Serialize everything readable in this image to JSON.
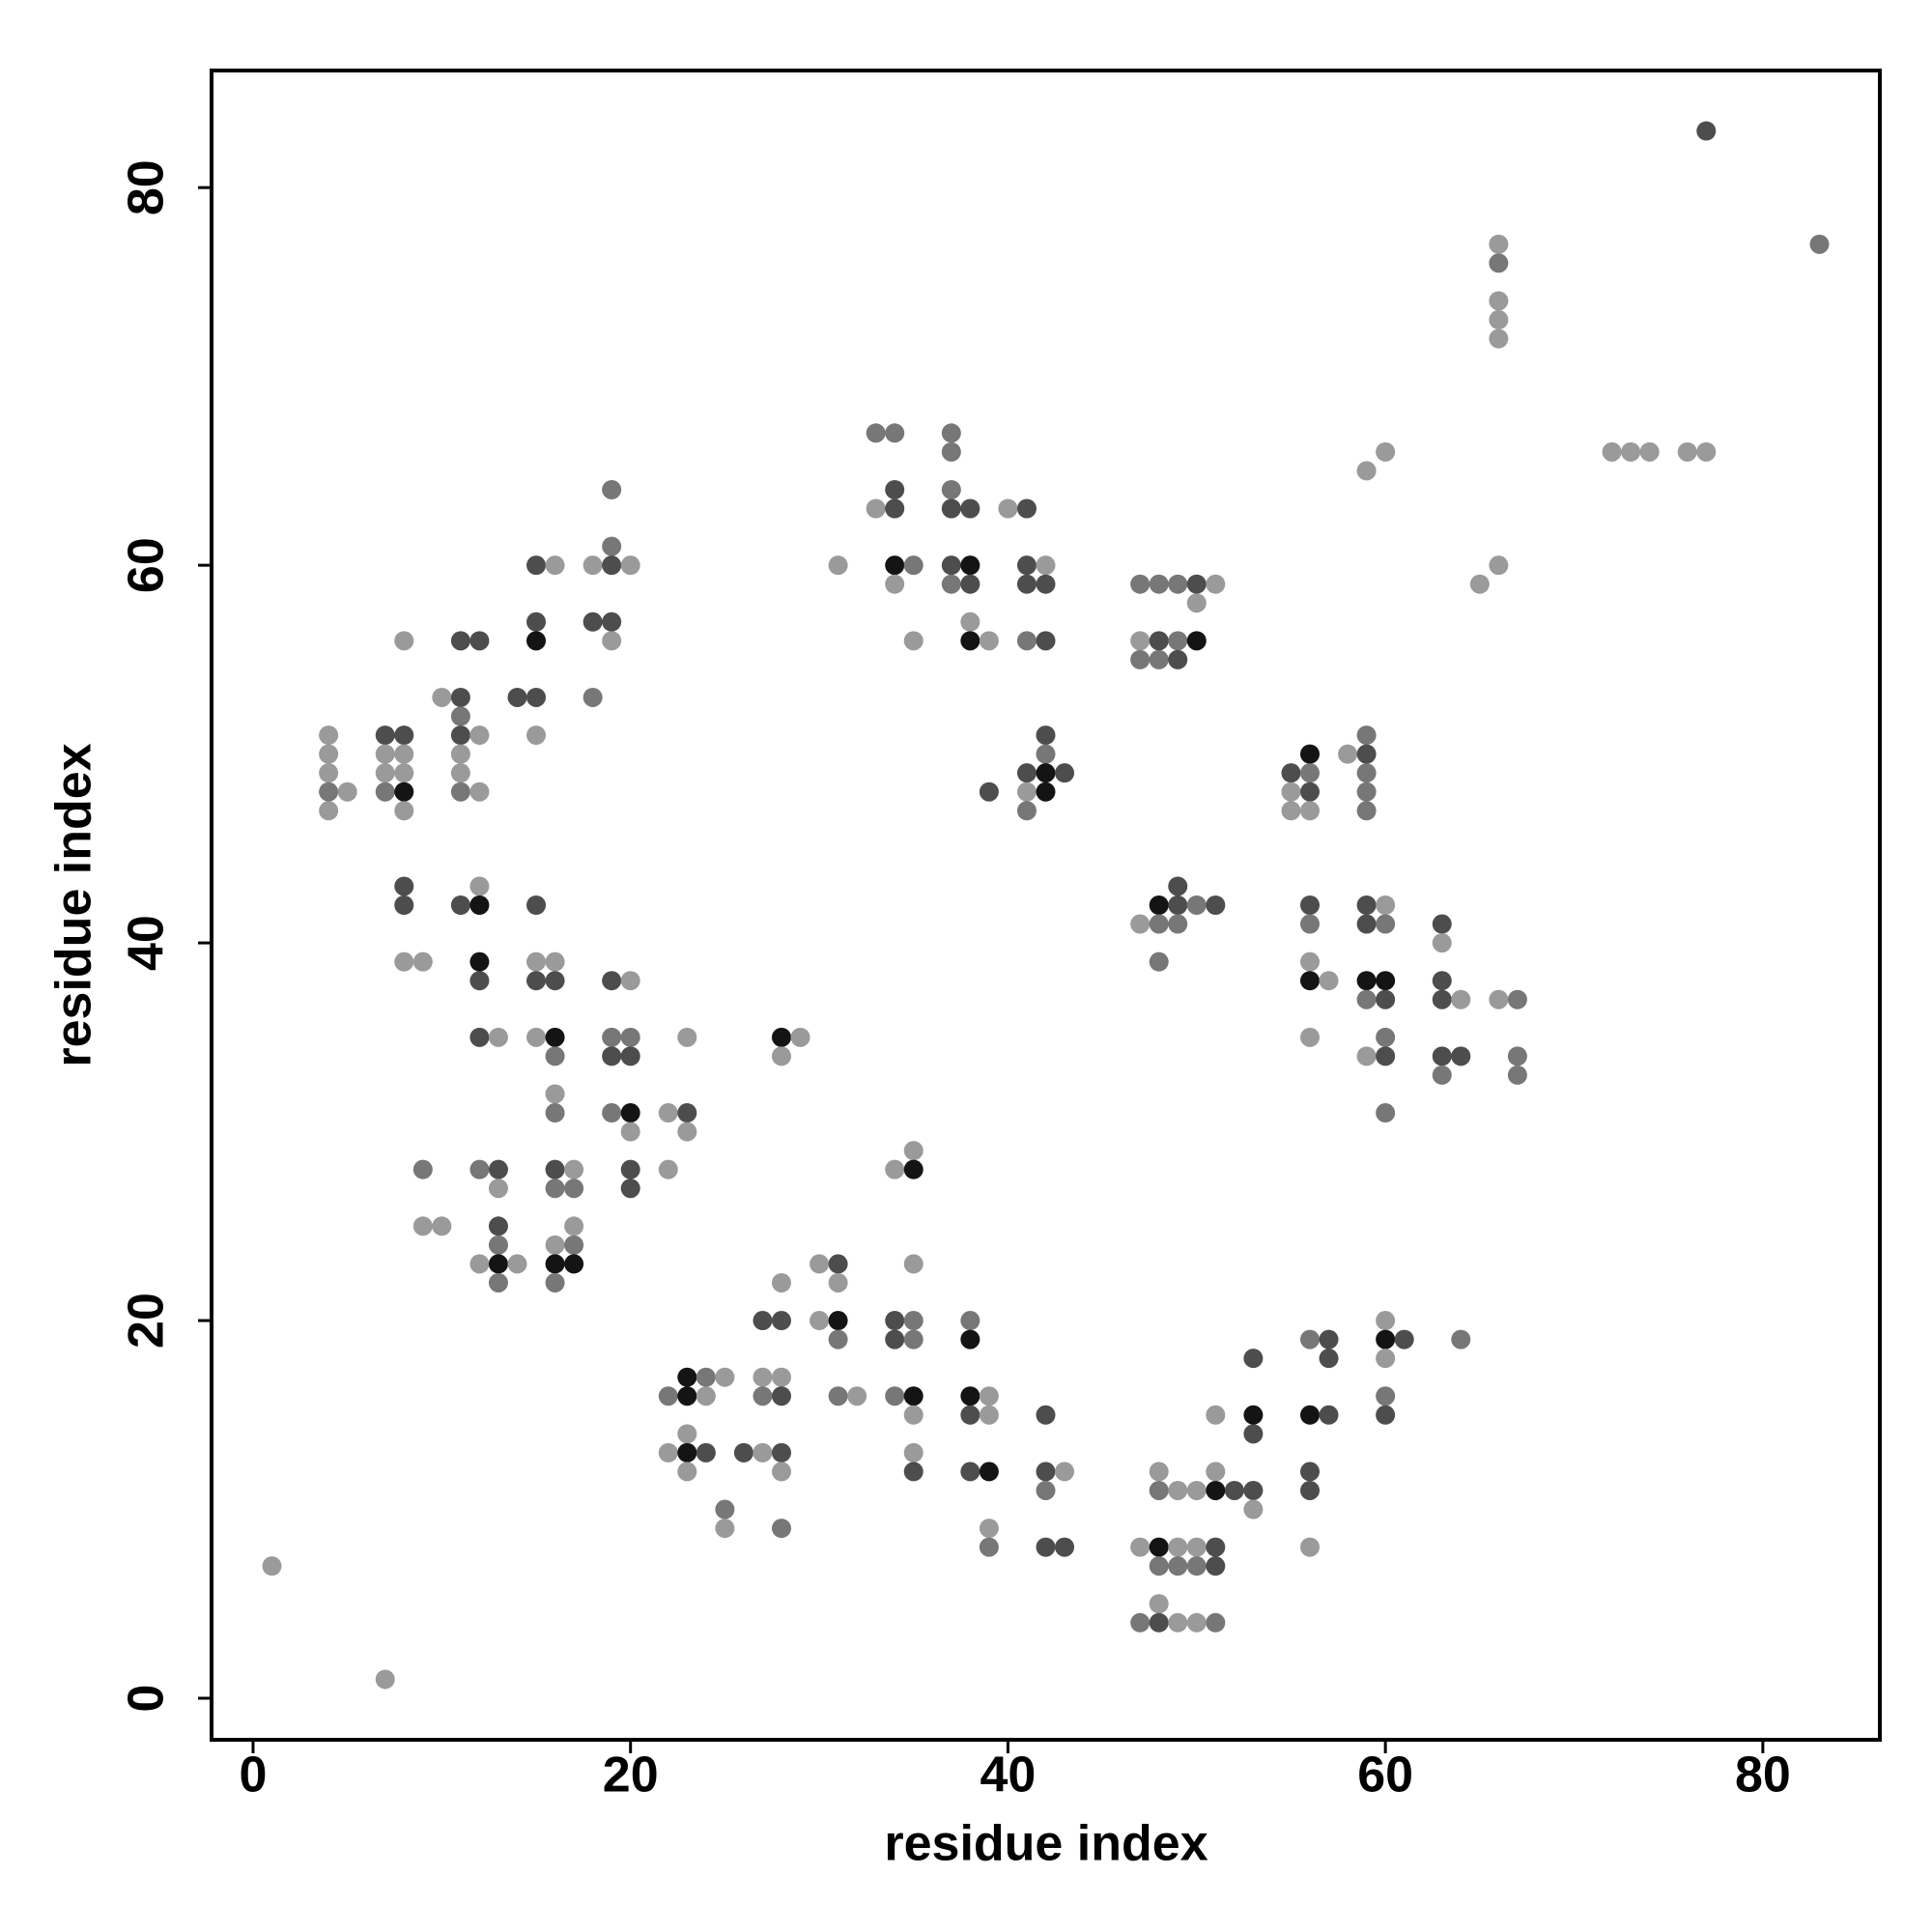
{
  "chart_data": {
    "type": "scatter",
    "xlabel": "residue index",
    "ylabel": "residue index",
    "xlim": [
      -2.2,
      86.2
    ],
    "ylim": [
      -2.2,
      86.2
    ],
    "xticks": [
      0,
      20,
      40,
      60,
      80
    ],
    "yticks": [
      0,
      20,
      40,
      60,
      80
    ],
    "x": [
      1,
      4,
      4,
      4,
      4,
      4,
      5,
      7,
      7,
      7,
      7,
      7,
      8,
      8,
      8,
      8,
      8,
      8,
      8,
      8,
      8,
      9,
      9,
      9,
      10,
      10,
      11,
      11,
      11,
      11,
      11,
      11,
      11,
      11,
      12,
      12,
      12,
      12,
      12,
      12,
      12,
      12,
      12,
      12,
      13,
      13,
      13,
      13,
      13,
      13,
      13,
      14,
      14,
      15,
      15,
      15,
      15,
      15,
      15,
      15,
      15,
      15,
      16,
      16,
      16,
      16,
      16,
      16,
      16,
      16,
      16,
      16,
      16,
      16,
      17,
      17,
      17,
      17,
      17,
      18,
      18,
      18,
      19,
      19,
      19,
      19,
      19,
      19,
      19,
      19,
      19,
      20,
      20,
      20,
      20,
      20,
      20,
      20,
      20,
      22,
      22,
      22,
      22,
      23,
      23,
      23,
      23,
      23,
      23,
      23,
      23,
      24,
      24,
      24,
      25,
      25,
      25,
      26,
      27,
      27,
      27,
      27,
      28,
      28,
      28,
      28,
      28,
      28,
      28,
      28,
      28,
      29,
      30,
      30,
      31,
      31,
      31,
      31,
      31,
      31,
      32,
      33,
      33,
      34,
      34,
      34,
      34,
      34,
      34,
      34,
      34,
      34,
      35,
      35,
      35,
      35,
      35,
      35,
      35,
      35,
      35,
      35,
      35,
      37,
      37,
      37,
      37,
      37,
      37,
      38,
      38,
      38,
      38,
      38,
      38,
      38,
      38,
      38,
      38,
      39,
      39,
      39,
      39,
      39,
      39,
      39,
      40,
      41,
      41,
      41,
      41,
      41,
      41,
      41,
      42,
      42,
      42,
      42,
      42,
      42,
      42,
      42,
      42,
      42,
      42,
      43,
      43,
      43,
      47,
      47,
      47,
      47,
      47,
      47,
      48,
      48,
      48,
      48,
      48,
      48,
      48,
      48,
      48,
      48,
      48,
      48,
      49,
      49,
      49,
      49,
      49,
      49,
      49,
      49,
      49,
      49,
      50,
      50,
      50,
      50,
      50,
      50,
      50,
      50,
      51,
      51,
      51,
      51,
      51,
      51,
      51,
      51,
      52,
      53,
      53,
      53,
      53,
      53,
      55,
      55,
      55,
      56,
      56,
      56,
      56,
      56,
      56,
      56,
      56,
      56,
      56,
      56,
      56,
      56,
      56,
      57,
      57,
      57,
      57,
      58,
      59,
      59,
      59,
      59,
      59,
      59,
      59,
      59,
      59,
      59,
      59,
      60,
      60,
      60,
      60,
      60,
      60,
      60,
      60,
      60,
      60,
      60,
      60,
      60,
      61,
      63,
      63,
      63,
      63,
      63,
      63,
      64,
      64,
      64,
      65,
      66,
      66,
      66,
      66,
      66,
      66,
      66,
      67,
      67,
      67,
      72,
      73,
      74,
      76,
      77,
      77,
      83
    ],
    "values": [
      7,
      51,
      50,
      49,
      48,
      47,
      48,
      51,
      50,
      49,
      48,
      1,
      56,
      51,
      50,
      49,
      48,
      47,
      43,
      42,
      39,
      39,
      28,
      25,
      53,
      25,
      56,
      53,
      52,
      51,
      50,
      49,
      48,
      42,
      56,
      51,
      48,
      43,
      42,
      39,
      38,
      35,
      28,
      23,
      35,
      28,
      27,
      25,
      24,
      23,
      22,
      53,
      23,
      60,
      57,
      56,
      53,
      51,
      42,
      39,
      38,
      35,
      60,
      39,
      38,
      35,
      34,
      32,
      31,
      28,
      27,
      24,
      23,
      22,
      28,
      27,
      25,
      24,
      23,
      60,
      57,
      53,
      64,
      61,
      60,
      57,
      56,
      38,
      35,
      34,
      31,
      60,
      38,
      35,
      34,
      31,
      30,
      28,
      27,
      31,
      28,
      16,
      13,
      35,
      31,
      30,
      17,
      16,
      14,
      13,
      12,
      17,
      16,
      13,
      17,
      10,
      9,
      13,
      20,
      17,
      16,
      13,
      35,
      34,
      22,
      20,
      17,
      16,
      13,
      12,
      9,
      35,
      23,
      20,
      60,
      23,
      22,
      20,
      19,
      16,
      16,
      67,
      63,
      67,
      64,
      63,
      60,
      59,
      28,
      20,
      19,
      16,
      60,
      56,
      29,
      28,
      23,
      20,
      19,
      16,
      15,
      13,
      12,
      67,
      66,
      64,
      63,
      60,
      59,
      63,
      60,
      59,
      57,
      56,
      20,
      19,
      16,
      15,
      12,
      56,
      48,
      16,
      15,
      12,
      9,
      8,
      63,
      63,
      60,
      59,
      56,
      49,
      48,
      47,
      60,
      59,
      56,
      51,
      50,
      49,
      48,
      15,
      12,
      11,
      8,
      49,
      12,
      8,
      59,
      56,
      55,
      41,
      8,
      4,
      59,
      56,
      55,
      42,
      41,
      39,
      12,
      11,
      8,
      7,
      5,
      4,
      59,
      56,
      55,
      43,
      42,
      41,
      11,
      8,
      7,
      4,
      59,
      58,
      56,
      42,
      11,
      8,
      7,
      4,
      59,
      42,
      15,
      12,
      11,
      8,
      7,
      4,
      11,
      18,
      15,
      14,
      11,
      10,
      49,
      48,
      47,
      50,
      49,
      48,
      47,
      42,
      41,
      39,
      38,
      35,
      19,
      15,
      12,
      11,
      8,
      38,
      19,
      18,
      15,
      50,
      65,
      51,
      50,
      49,
      48,
      47,
      42,
      41,
      38,
      37,
      34,
      66,
      42,
      41,
      38,
      37,
      35,
      34,
      31,
      20,
      19,
      18,
      16,
      15,
      19,
      41,
      40,
      38,
      37,
      34,
      33,
      37,
      34,
      19,
      59,
      77,
      76,
      74,
      73,
      72,
      60,
      37,
      37,
      34,
      33,
      66,
      66,
      66,
      66,
      83,
      66,
      77
    ],
    "colors": [
      "#9a9a9a",
      "#9a9a9a",
      "#9a9a9a",
      "#9a9a9a",
      "#777777",
      "#9a9a9a",
      "#9a9a9a",
      "#4d4d4d",
      "#9a9a9a",
      "#9a9a9a",
      "#777777",
      "#9a9a9a",
      "#9a9a9a",
      "#4d4d4d",
      "#9a9a9a",
      "#9a9a9a",
      "#141414",
      "#9a9a9a",
      "#4d4d4d",
      "#4d4d4d",
      "#9a9a9a",
      "#9a9a9a",
      "#777777",
      "#9a9a9a",
      "#9a9a9a",
      "#9a9a9a",
      "#4d4d4d",
      "#4d4d4d",
      "#777777",
      "#4d4d4d",
      "#9a9a9a",
      "#9a9a9a",
      "#777777",
      "#4d4d4d",
      "#4d4d4d",
      "#9a9a9a",
      "#9a9a9a",
      "#9a9a9a",
      "#141414",
      "#141414",
      "#4d4d4d",
      "#4d4d4d",
      "#777777",
      "#9a9a9a",
      "#9a9a9a",
      "#4d4d4d",
      "#9a9a9a",
      "#4d4d4d",
      "#777777",
      "#141414",
      "#777777",
      "#4d4d4d",
      "#9a9a9a",
      "#4d4d4d",
      "#4d4d4d",
      "#141414",
      "#4d4d4d",
      "#9a9a9a",
      "#4d4d4d",
      "#9a9a9a",
      "#4d4d4d",
      "#9a9a9a",
      "#9a9a9a",
      "#9a9a9a",
      "#4d4d4d",
      "#141414",
      "#777777",
      "#9a9a9a",
      "#777777",
      "#4d4d4d",
      "#777777",
      "#9a9a9a",
      "#141414",
      "#777777",
      "#9a9a9a",
      "#777777",
      "#9a9a9a",
      "#777777",
      "#141414",
      "#9a9a9a",
      "#4d4d4d",
      "#777777",
      "#777777",
      "#777777",
      "#4d4d4d",
      "#4d4d4d",
      "#9a9a9a",
      "#4d4d4d",
      "#777777",
      "#4d4d4d",
      "#777777",
      "#9a9a9a",
      "#9a9a9a",
      "#777777",
      "#4d4d4d",
      "#141414",
      "#9a9a9a",
      "#4d4d4d",
      "#4d4d4d",
      "#9a9a9a",
      "#9a9a9a",
      "#777777",
      "#9a9a9a",
      "#9a9a9a",
      "#4d4d4d",
      "#9a9a9a",
      "#141414",
      "#141414",
      "#9a9a9a",
      "#141414",
      "#9a9a9a",
      "#777777",
      "#9a9a9a",
      "#4d4d4d",
      "#9a9a9a",
      "#777777",
      "#9a9a9a",
      "#4d4d4d",
      "#4d4d4d",
      "#9a9a9a",
      "#777777",
      "#9a9a9a",
      "#141414",
      "#9a9a9a",
      "#9a9a9a",
      "#4d4d4d",
      "#9a9a9a",
      "#4d4d4d",
      "#4d4d4d",
      "#9a9a9a",
      "#777777",
      "#9a9a9a",
      "#9a9a9a",
      "#9a9a9a",
      "#9a9a9a",
      "#4d4d4d",
      "#9a9a9a",
      "#141414",
      "#777777",
      "#777777",
      "#9a9a9a",
      "#777777",
      "#9a9a9a",
      "#777777",
      "#4d4d4d",
      "#4d4d4d",
      "#141414",
      "#9a9a9a",
      "#9a9a9a",
      "#4d4d4d",
      "#4d4d4d",
      "#777777",
      "#777777",
      "#9a9a9a",
      "#9a9a9a",
      "#141414",
      "#9a9a9a",
      "#777777",
      "#777777",
      "#141414",
      "#9a9a9a",
      "#9a9a9a",
      "#4d4d4d",
      "#777777",
      "#777777",
      "#777777",
      "#4d4d4d",
      "#4d4d4d",
      "#777777",
      "#4d4d4d",
      "#141414",
      "#4d4d4d",
      "#9a9a9a",
      "#141414",
      "#777777",
      "#141414",
      "#141414",
      "#4d4d4d",
      "#4d4d4d",
      "#9a9a9a",
      "#4d4d4d",
      "#9a9a9a",
      "#9a9a9a",
      "#141414",
      "#9a9a9a",
      "#777777",
      "#9a9a9a",
      "#4d4d4d",
      "#4d4d4d",
      "#4d4d4d",
      "#777777",
      "#4d4d4d",
      "#9a9a9a",
      "#777777",
      "#9a9a9a",
      "#4d4d4d",
      "#4d4d4d",
      "#4d4d4d",
      "#777777",
      "#141414",
      "#141414",
      "#4d4d4d",
      "#4d4d4d",
      "#777777",
      "#4d4d4d",
      "#4d4d4d",
      "#9a9a9a",
      "#4d4d4d",
      "#777777",
      "#9a9a9a",
      "#777777",
      "#9a9a9a",
      "#9a9a9a",
      "#777777",
      "#777777",
      "#4d4d4d",
      "#777777",
      "#141414",
      "#777777",
      "#777777",
      "#9a9a9a",
      "#777777",
      "#141414",
      "#777777",
      "#9a9a9a",
      "#4d4d4d",
      "#777777",
      "#777777",
      "#4d4d4d",
      "#4d4d4d",
      "#4d4d4d",
      "#777777",
      "#9a9a9a",
      "#9a9a9a",
      "#777777",
      "#9a9a9a",
      "#4d4d4d",
      "#9a9a9a",
      "#141414",
      "#777777",
      "#9a9a9a",
      "#9a9a9a",
      "#777777",
      "#9a9a9a",
      "#9a9a9a",
      "#4d4d4d",
      "#9a9a9a",
      "#9a9a9a",
      "#141414",
      "#4d4d4d",
      "#4d4d4d",
      "#777777",
      "#4d4d4d",
      "#4d4d4d",
      "#141414",
      "#4d4d4d",
      "#4d4d4d",
      "#9a9a9a",
      "#4d4d4d",
      "#9a9a9a",
      "#9a9a9a",
      "#141414",
      "#777777",
      "#4d4d4d",
      "#9a9a9a",
      "#4d4d4d",
      "#777777",
      "#9a9a9a",
      "#141414",
      "#9a9a9a",
      "#777777",
      "#141414",
      "#4d4d4d",
      "#4d4d4d",
      "#9a9a9a",
      "#9a9a9a",
      "#4d4d4d",
      "#4d4d4d",
      "#4d4d4d",
      "#9a9a9a",
      "#9a9a9a",
      "#777777",
      "#4d4d4d",
      "#777777",
      "#777777",
      "#777777",
      "#4d4d4d",
      "#4d4d4d",
      "#141414",
      "#777777",
      "#9a9a9a",
      "#9a9a9a",
      "#9a9a9a",
      "#777777",
      "#141414",
      "#4d4d4d",
      "#777777",
      "#4d4d4d",
      "#777777",
      "#9a9a9a",
      "#141414",
      "#9a9a9a",
      "#777777",
      "#4d4d4d",
      "#4d4d4d",
      "#4d4d4d",
      "#9a9a9a",
      "#4d4d4d",
      "#4d4d4d",
      "#4d4d4d",
      "#777777",
      "#9a9a9a",
      "#4d4d4d",
      "#777777",
      "#9a9a9a",
      "#9a9a9a",
      "#777777",
      "#9a9a9a",
      "#9a9a9a",
      "#9a9a9a",
      "#9a9a9a",
      "#9a9a9a",
      "#777777",
      "#777777",
      "#777777",
      "#9a9a9a",
      "#9a9a9a",
      "#9a9a9a",
      "#9a9a9a",
      "#4d4d4d",
      "#9a9a9a",
      "#777777"
    ]
  }
}
